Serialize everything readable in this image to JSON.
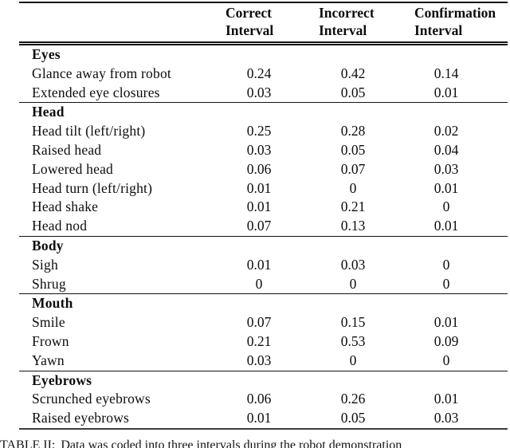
{
  "table": {
    "headers": [
      {
        "line1": "Correct",
        "line2": "Interval"
      },
      {
        "line1": "Incorrect",
        "line2": "Interval"
      },
      {
        "line1": "Confirmation",
        "line2": "Interval"
      }
    ],
    "sections": [
      {
        "title": "Eyes",
        "rows": [
          {
            "label": "Glance away from robot",
            "values": [
              "0.24",
              "0.42",
              "0.14"
            ]
          },
          {
            "label": "Extended eye closures",
            "values": [
              "0.03",
              "0.05",
              "0.01"
            ]
          }
        ]
      },
      {
        "title": "Head",
        "rows": [
          {
            "label": "Head tilt (left/right)",
            "values": [
              "0.25",
              "0.28",
              "0.02"
            ]
          },
          {
            "label": "Raised head",
            "values": [
              "0.03",
              "0.05",
              "0.04"
            ]
          },
          {
            "label": "Lowered head",
            "values": [
              "0.06",
              "0.07",
              "0.03"
            ]
          },
          {
            "label": "Head turn (left/right)",
            "values": [
              "0.01",
              "0",
              "0.01"
            ]
          },
          {
            "label": "Head shake",
            "values": [
              "0.01",
              "0.21",
              "0"
            ]
          },
          {
            "label": "Head nod",
            "values": [
              "0.07",
              "0.13",
              "0.01"
            ]
          }
        ]
      },
      {
        "title": "Body",
        "rows": [
          {
            "label": "Sigh",
            "values": [
              "0.01",
              "0.03",
              "0"
            ]
          },
          {
            "label": "Shrug",
            "values": [
              "0",
              "0",
              "0"
            ]
          }
        ]
      },
      {
        "title": "Mouth",
        "rows": [
          {
            "label": "Smile",
            "values": [
              "0.07",
              "0.15",
              "0.01"
            ]
          },
          {
            "label": "Frown",
            "values": [
              "0.21",
              "0.53",
              "0.09"
            ]
          },
          {
            "label": "Yawn",
            "values": [
              "0.03",
              "0",
              "0"
            ]
          }
        ]
      },
      {
        "title": "Eyebrows",
        "rows": [
          {
            "label": "Scrunched eyebrows",
            "values": [
              "0.06",
              "0.26",
              "0.01"
            ]
          },
          {
            "label": "Raised eyebrows",
            "values": [
              "0.01",
              "0.05",
              "0.03"
            ]
          }
        ]
      }
    ]
  },
  "caption": {
    "tag": "TABLE II:",
    "text": "Data was coded into three intervals during the robot demonstration"
  }
}
